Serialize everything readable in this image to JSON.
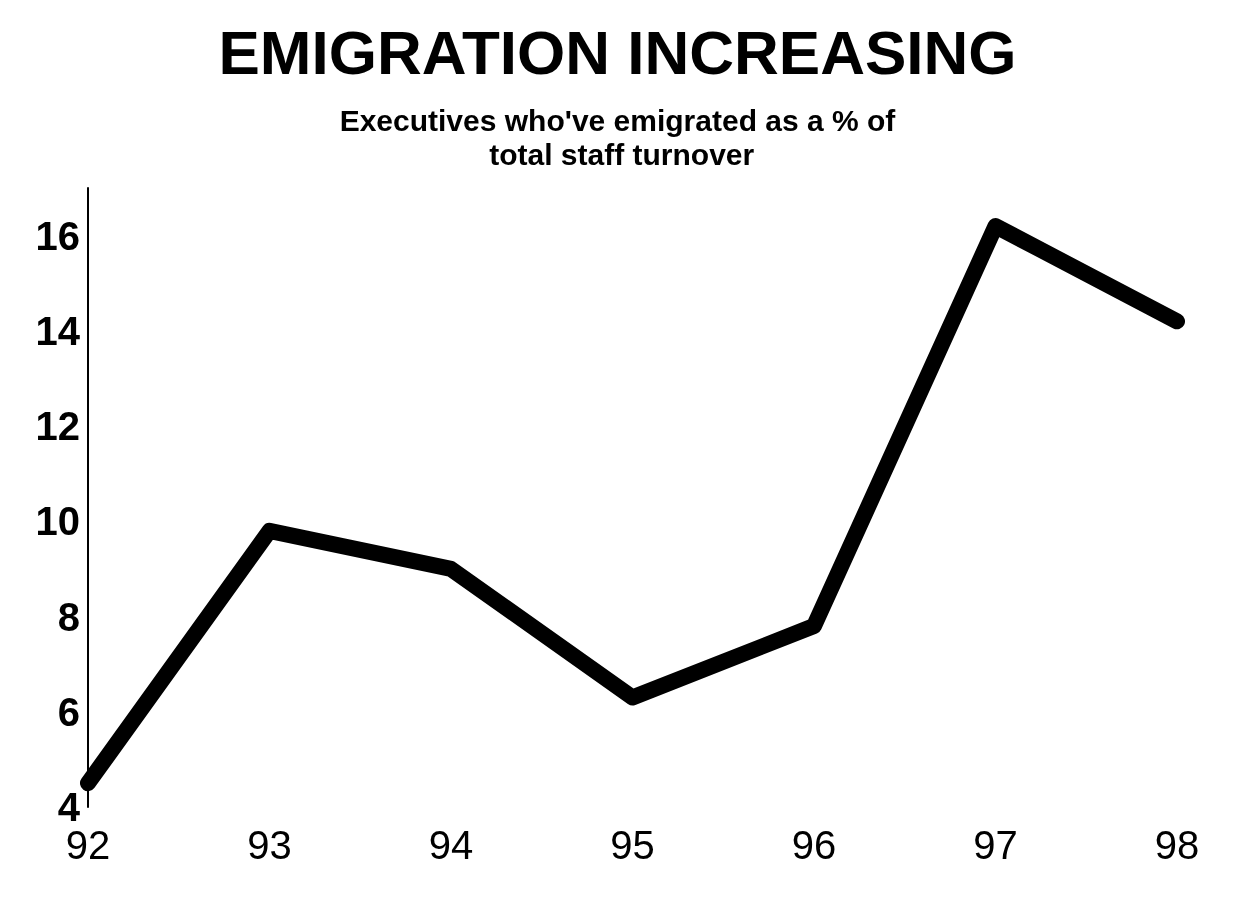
{
  "chart_data": {
    "type": "line",
    "title": "EMIGRATION INCREASING",
    "subtitle": "Executives who've emigrated as a % of total staff turnover",
    "categories": [
      "92",
      "93",
      "94",
      "95",
      "96",
      "97",
      "98"
    ],
    "series": [
      {
        "color": "#000000",
        "values": [
          4.5,
          9.8,
          9,
          6.3,
          7.8,
          16.2,
          14.2
        ]
      }
    ],
    "ylim": [
      4,
      17
    ],
    "yticks": [
      4,
      6,
      8,
      10,
      12,
      14,
      16
    ],
    "grid": false,
    "line_style": "solid"
  }
}
